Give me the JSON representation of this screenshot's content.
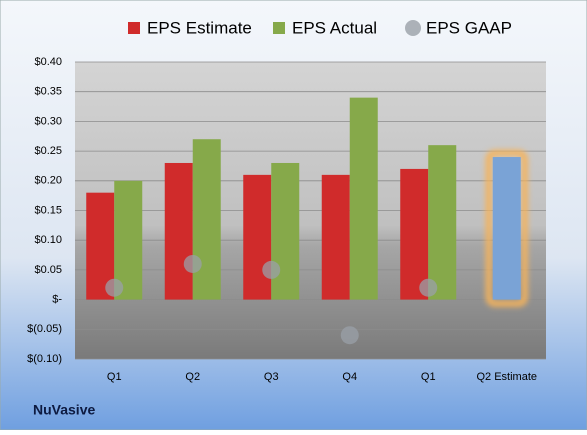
{
  "chart_data": {
    "type": "bar",
    "footer": "NuVasive",
    "categories": [
      "Q1",
      "Q2",
      "Q3",
      "Q4",
      "Q1",
      "Q2 Estimate"
    ],
    "series": [
      {
        "name": "EPS Estimate",
        "color": "#d02b2b",
        "values": [
          0.18,
          0.23,
          0.21,
          0.21,
          0.22,
          0.24
        ]
      },
      {
        "name": "EPS Actual",
        "color": "#86a94a",
        "values": [
          0.2,
          0.27,
          0.23,
          0.34,
          0.26,
          null
        ]
      },
      {
        "name": "EPS GAAP",
        "color": "#9aa0a8",
        "marker": "circle",
        "values": [
          0.02,
          0.06,
          0.05,
          -0.06,
          0.02,
          null
        ]
      }
    ],
    "highlight_color": "#7aa3d6",
    "highlight_glow": "#f5b35c",
    "ylim": [
      -0.1,
      0.4
    ],
    "yticks": [
      {
        "value": -0.1,
        "label": "$(0.10)"
      },
      {
        "value": -0.05,
        "label": "$(0.05)"
      },
      {
        "value": 0,
        "label": "$-"
      },
      {
        "value": 0.05,
        "label": "$0.05"
      },
      {
        "value": 0.1,
        "label": "$0.10"
      },
      {
        "value": 0.15,
        "label": "$0.15"
      },
      {
        "value": 0.2,
        "label": "$0.20"
      },
      {
        "value": 0.25,
        "label": "$0.25"
      },
      {
        "value": 0.3,
        "label": "$0.30"
      },
      {
        "value": 0.35,
        "label": "$0.35"
      },
      {
        "value": 0.4,
        "label": "$0.40"
      }
    ],
    "grid": true,
    "legend": "top"
  }
}
